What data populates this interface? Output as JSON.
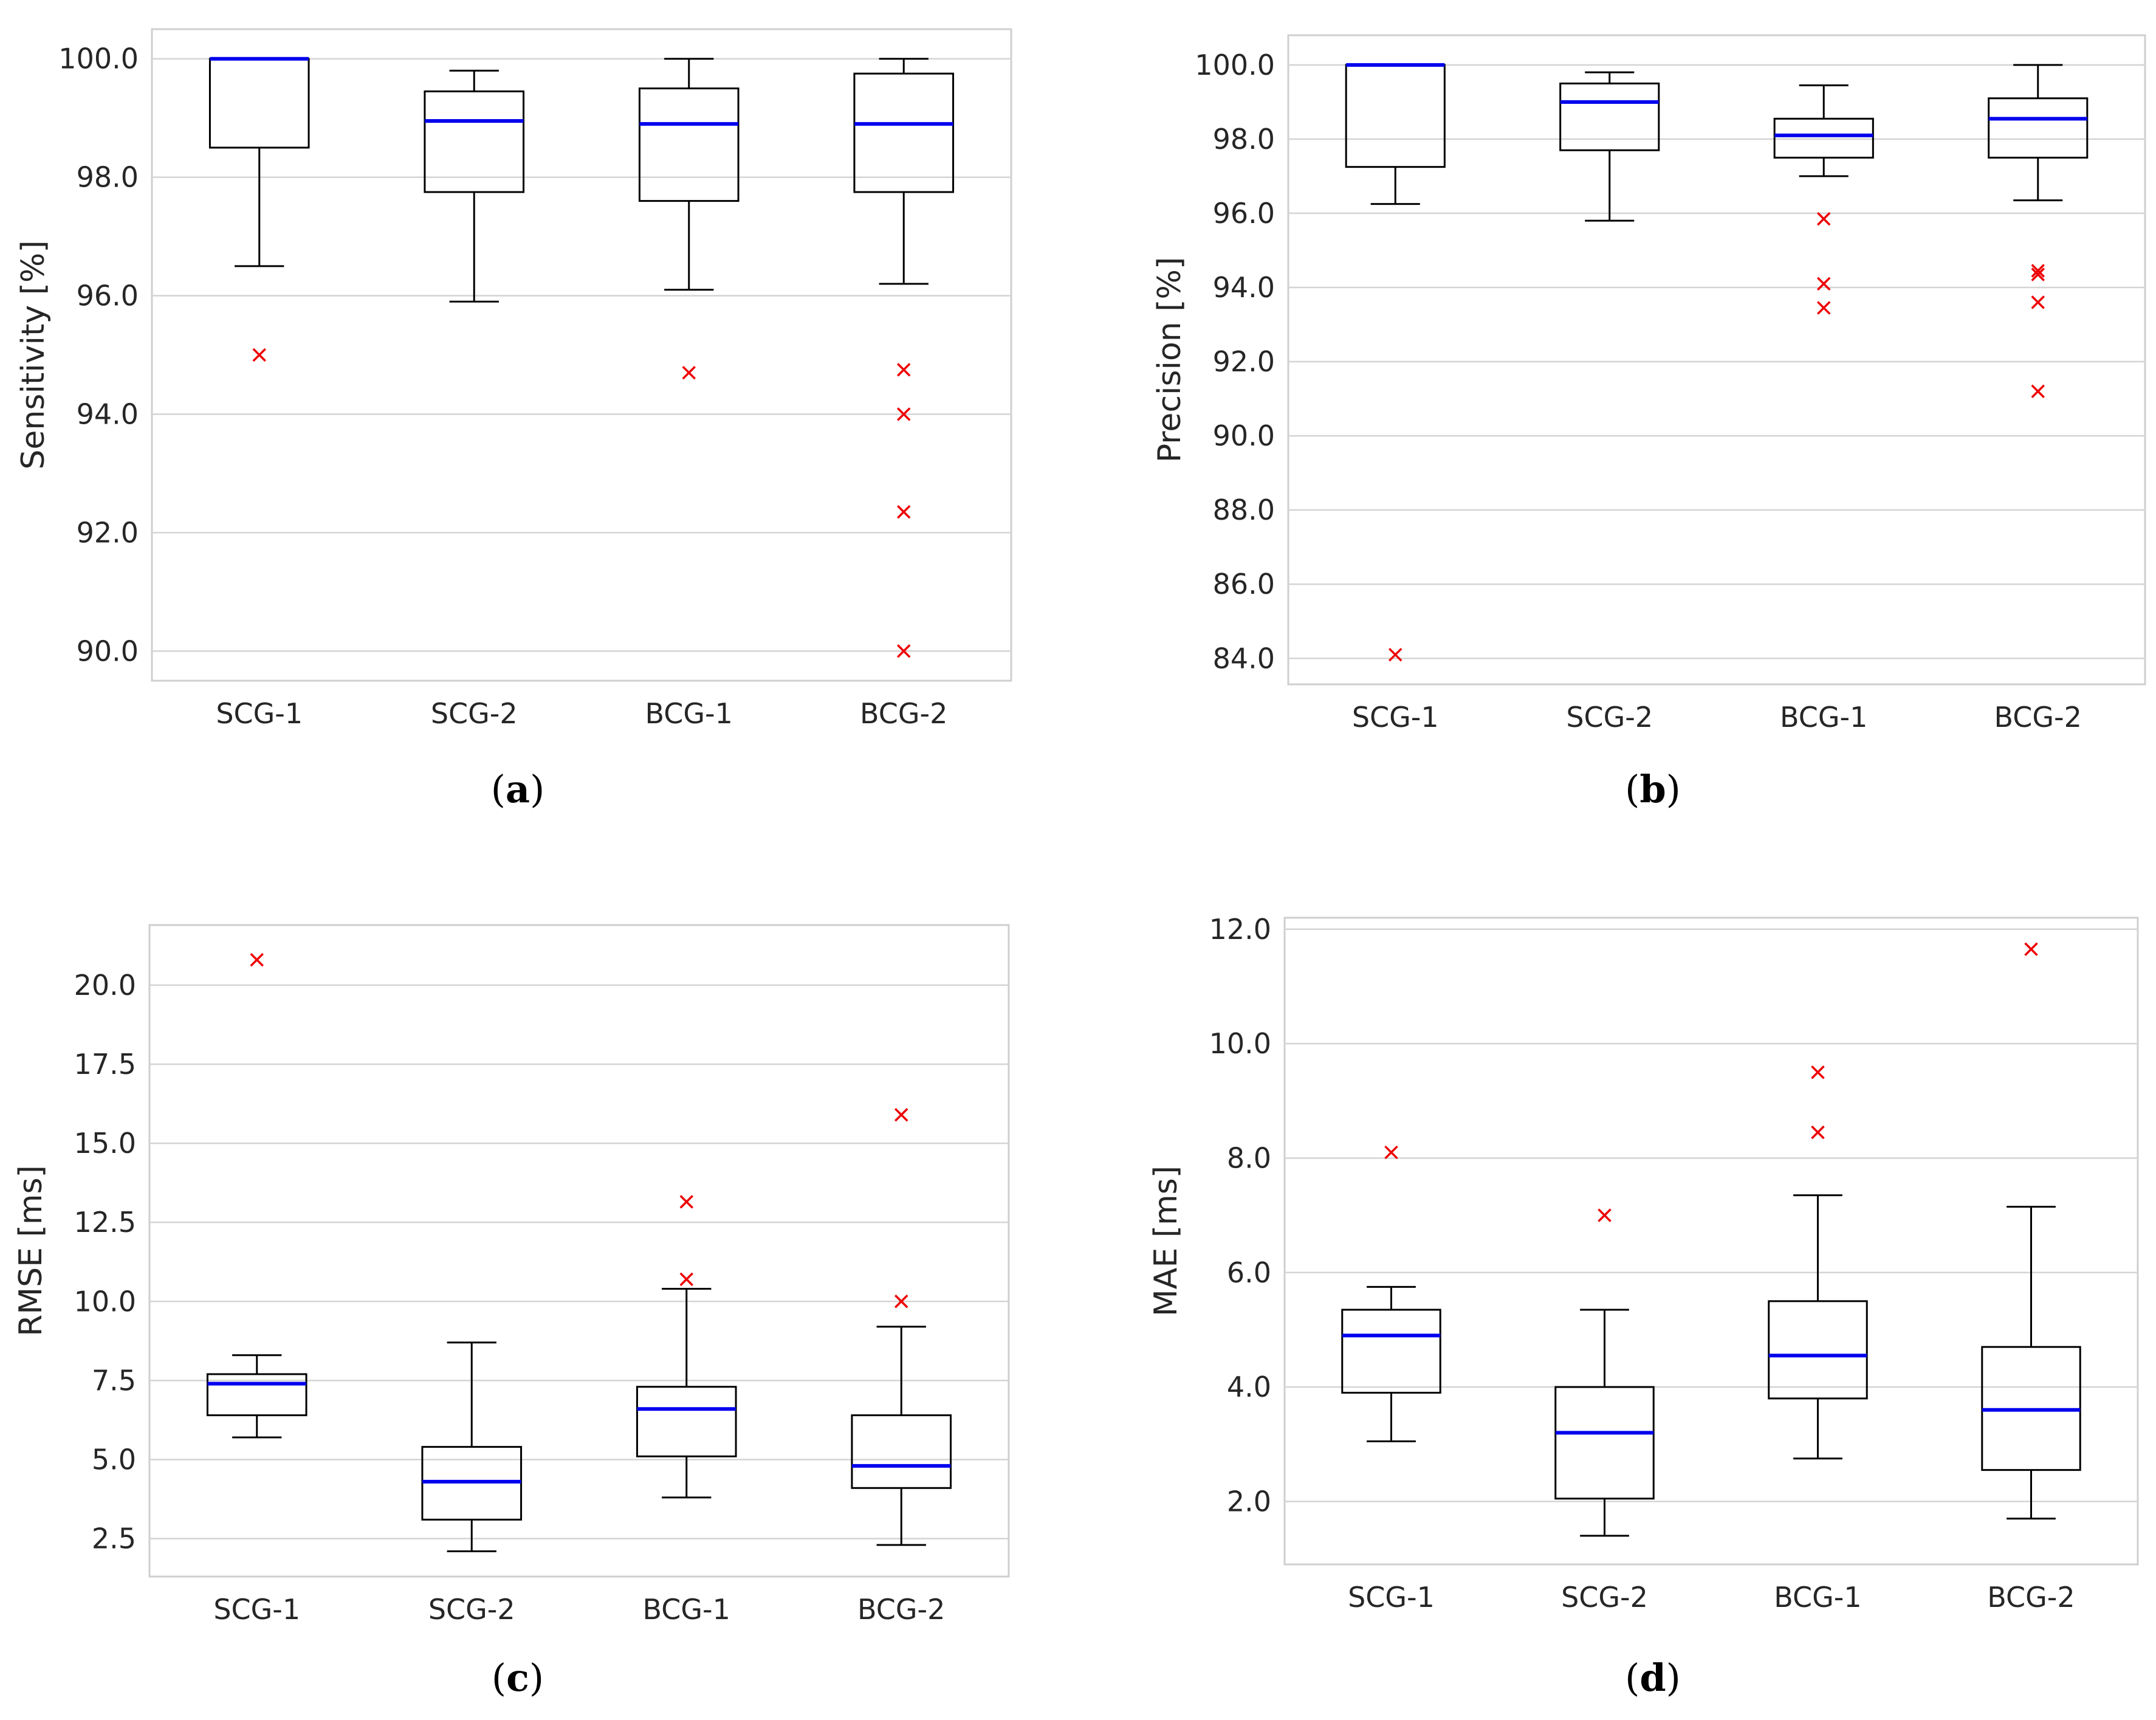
{
  "colors": {
    "median": "#0000ee",
    "outlier": "#ee0000",
    "box": "#000000",
    "grid": "#d4d4d4",
    "frame": "#cfcfcf",
    "text": "#262626"
  },
  "chart_data": [
    {
      "type": "box",
      "panel_label": "a",
      "title": "",
      "xlabel": "",
      "ylabel": "Sensitivity [%]",
      "categories": [
        "SCG-1",
        "SCG-2",
        "BCG-1",
        "BCG-2"
      ],
      "ylim": [
        89.5,
        100.5
      ],
      "yticks": [
        "90.0",
        "92.0",
        "94.0",
        "96.0",
        "98.0",
        "100.0"
      ],
      "ytick_values": [
        90,
        92,
        94,
        96,
        98,
        100
      ],
      "grid": true,
      "boxes": [
        {
          "whisker_low": 96.5,
          "q1": 98.5,
          "median": 100.0,
          "q3": 100.0,
          "whisker_high": 100.0,
          "outliers": [
            95.0
          ]
        },
        {
          "whisker_low": 95.9,
          "q1": 97.75,
          "median": 98.95,
          "q3": 99.45,
          "whisker_high": 99.8,
          "outliers": []
        },
        {
          "whisker_low": 96.1,
          "q1": 97.6,
          "median": 98.9,
          "q3": 99.5,
          "whisker_high": 100.0,
          "outliers": [
            94.7
          ]
        },
        {
          "whisker_low": 96.2,
          "q1": 97.75,
          "median": 98.9,
          "q3": 99.75,
          "whisker_high": 100.0,
          "outliers": [
            94.75,
            94.0,
            92.35,
            90.0
          ]
        }
      ]
    },
    {
      "type": "box",
      "panel_label": "b",
      "title": "",
      "xlabel": "",
      "ylabel": "Precision [%]",
      "categories": [
        "SCG-1",
        "SCG-2",
        "BCG-1",
        "BCG-2"
      ],
      "ylim": [
        83.3,
        100.8
      ],
      "yticks": [
        "84.0",
        "86.0",
        "88.0",
        "90.0",
        "92.0",
        "94.0",
        "96.0",
        "98.0",
        "100.0"
      ],
      "ytick_values": [
        84,
        86,
        88,
        90,
        92,
        94,
        96,
        98,
        100
      ],
      "grid": true,
      "boxes": [
        {
          "whisker_low": 96.25,
          "q1": 97.25,
          "median": 100.0,
          "q3": 100.0,
          "whisker_high": 100.0,
          "outliers": [
            84.1
          ]
        },
        {
          "whisker_low": 95.8,
          "q1": 97.7,
          "median": 99.0,
          "q3": 99.5,
          "whisker_high": 99.8,
          "outliers": []
        },
        {
          "whisker_low": 97.0,
          "q1": 97.5,
          "median": 98.1,
          "q3": 98.55,
          "whisker_high": 99.45,
          "outliers": [
            95.85,
            94.1,
            93.45
          ]
        },
        {
          "whisker_low": 96.35,
          "q1": 97.5,
          "median": 98.55,
          "q3": 99.1,
          "whisker_high": 100.0,
          "outliers": [
            94.45,
            94.35,
            93.6,
            91.2
          ]
        }
      ]
    },
    {
      "type": "box",
      "panel_label": "c",
      "title": "",
      "xlabel": "",
      "ylabel": "RMSE [ms]",
      "categories": [
        "SCG-1",
        "SCG-2",
        "BCG-1",
        "BCG-2"
      ],
      "ylim": [
        1.3,
        21.9
      ],
      "yticks": [
        "2.5",
        "5.0",
        "7.5",
        "10.0",
        "12.5",
        "15.0",
        "17.5",
        "20.0"
      ],
      "ytick_values": [
        2.5,
        5.0,
        7.5,
        10.0,
        12.5,
        15.0,
        17.5,
        20.0
      ],
      "grid": true,
      "boxes": [
        {
          "whisker_low": 5.7,
          "q1": 6.4,
          "median": 7.4,
          "q3": 7.7,
          "whisker_high": 8.3,
          "outliers": [
            20.8
          ]
        },
        {
          "whisker_low": 2.1,
          "q1": 3.1,
          "median": 4.3,
          "q3": 5.4,
          "whisker_high": 8.7,
          "outliers": []
        },
        {
          "whisker_low": 3.8,
          "q1": 5.1,
          "median": 6.6,
          "q3": 7.3,
          "whisker_high": 10.4,
          "outliers": [
            13.15,
            10.7
          ]
        },
        {
          "whisker_low": 2.3,
          "q1": 4.1,
          "median": 4.8,
          "q3": 6.4,
          "whisker_high": 9.2,
          "outliers": [
            15.9,
            10.0
          ]
        }
      ]
    },
    {
      "type": "box",
      "panel_label": "d",
      "title": "",
      "xlabel": "",
      "ylabel": "MAE [ms]",
      "categories": [
        "SCG-1",
        "SCG-2",
        "BCG-1",
        "BCG-2"
      ],
      "ylim": [
        0.9,
        12.2
      ],
      "yticks": [
        "2.0",
        "4.0",
        "6.0",
        "8.0",
        "10.0",
        "12.0"
      ],
      "ytick_values": [
        2,
        4,
        6,
        8,
        10,
        12
      ],
      "grid": true,
      "boxes": [
        {
          "whisker_low": 3.05,
          "q1": 3.9,
          "median": 4.9,
          "q3": 5.35,
          "whisker_high": 5.75,
          "outliers": [
            8.1
          ]
        },
        {
          "whisker_low": 1.4,
          "q1": 2.05,
          "median": 3.2,
          "q3": 4.0,
          "whisker_high": 5.35,
          "outliers": [
            7.0
          ]
        },
        {
          "whisker_low": 2.75,
          "q1": 3.8,
          "median": 4.55,
          "q3": 5.5,
          "whisker_high": 7.35,
          "outliers": [
            9.5,
            8.45
          ]
        },
        {
          "whisker_low": 1.7,
          "q1": 2.55,
          "median": 3.6,
          "q3": 4.7,
          "whisker_high": 7.15,
          "outliers": [
            11.65
          ]
        }
      ]
    }
  ]
}
